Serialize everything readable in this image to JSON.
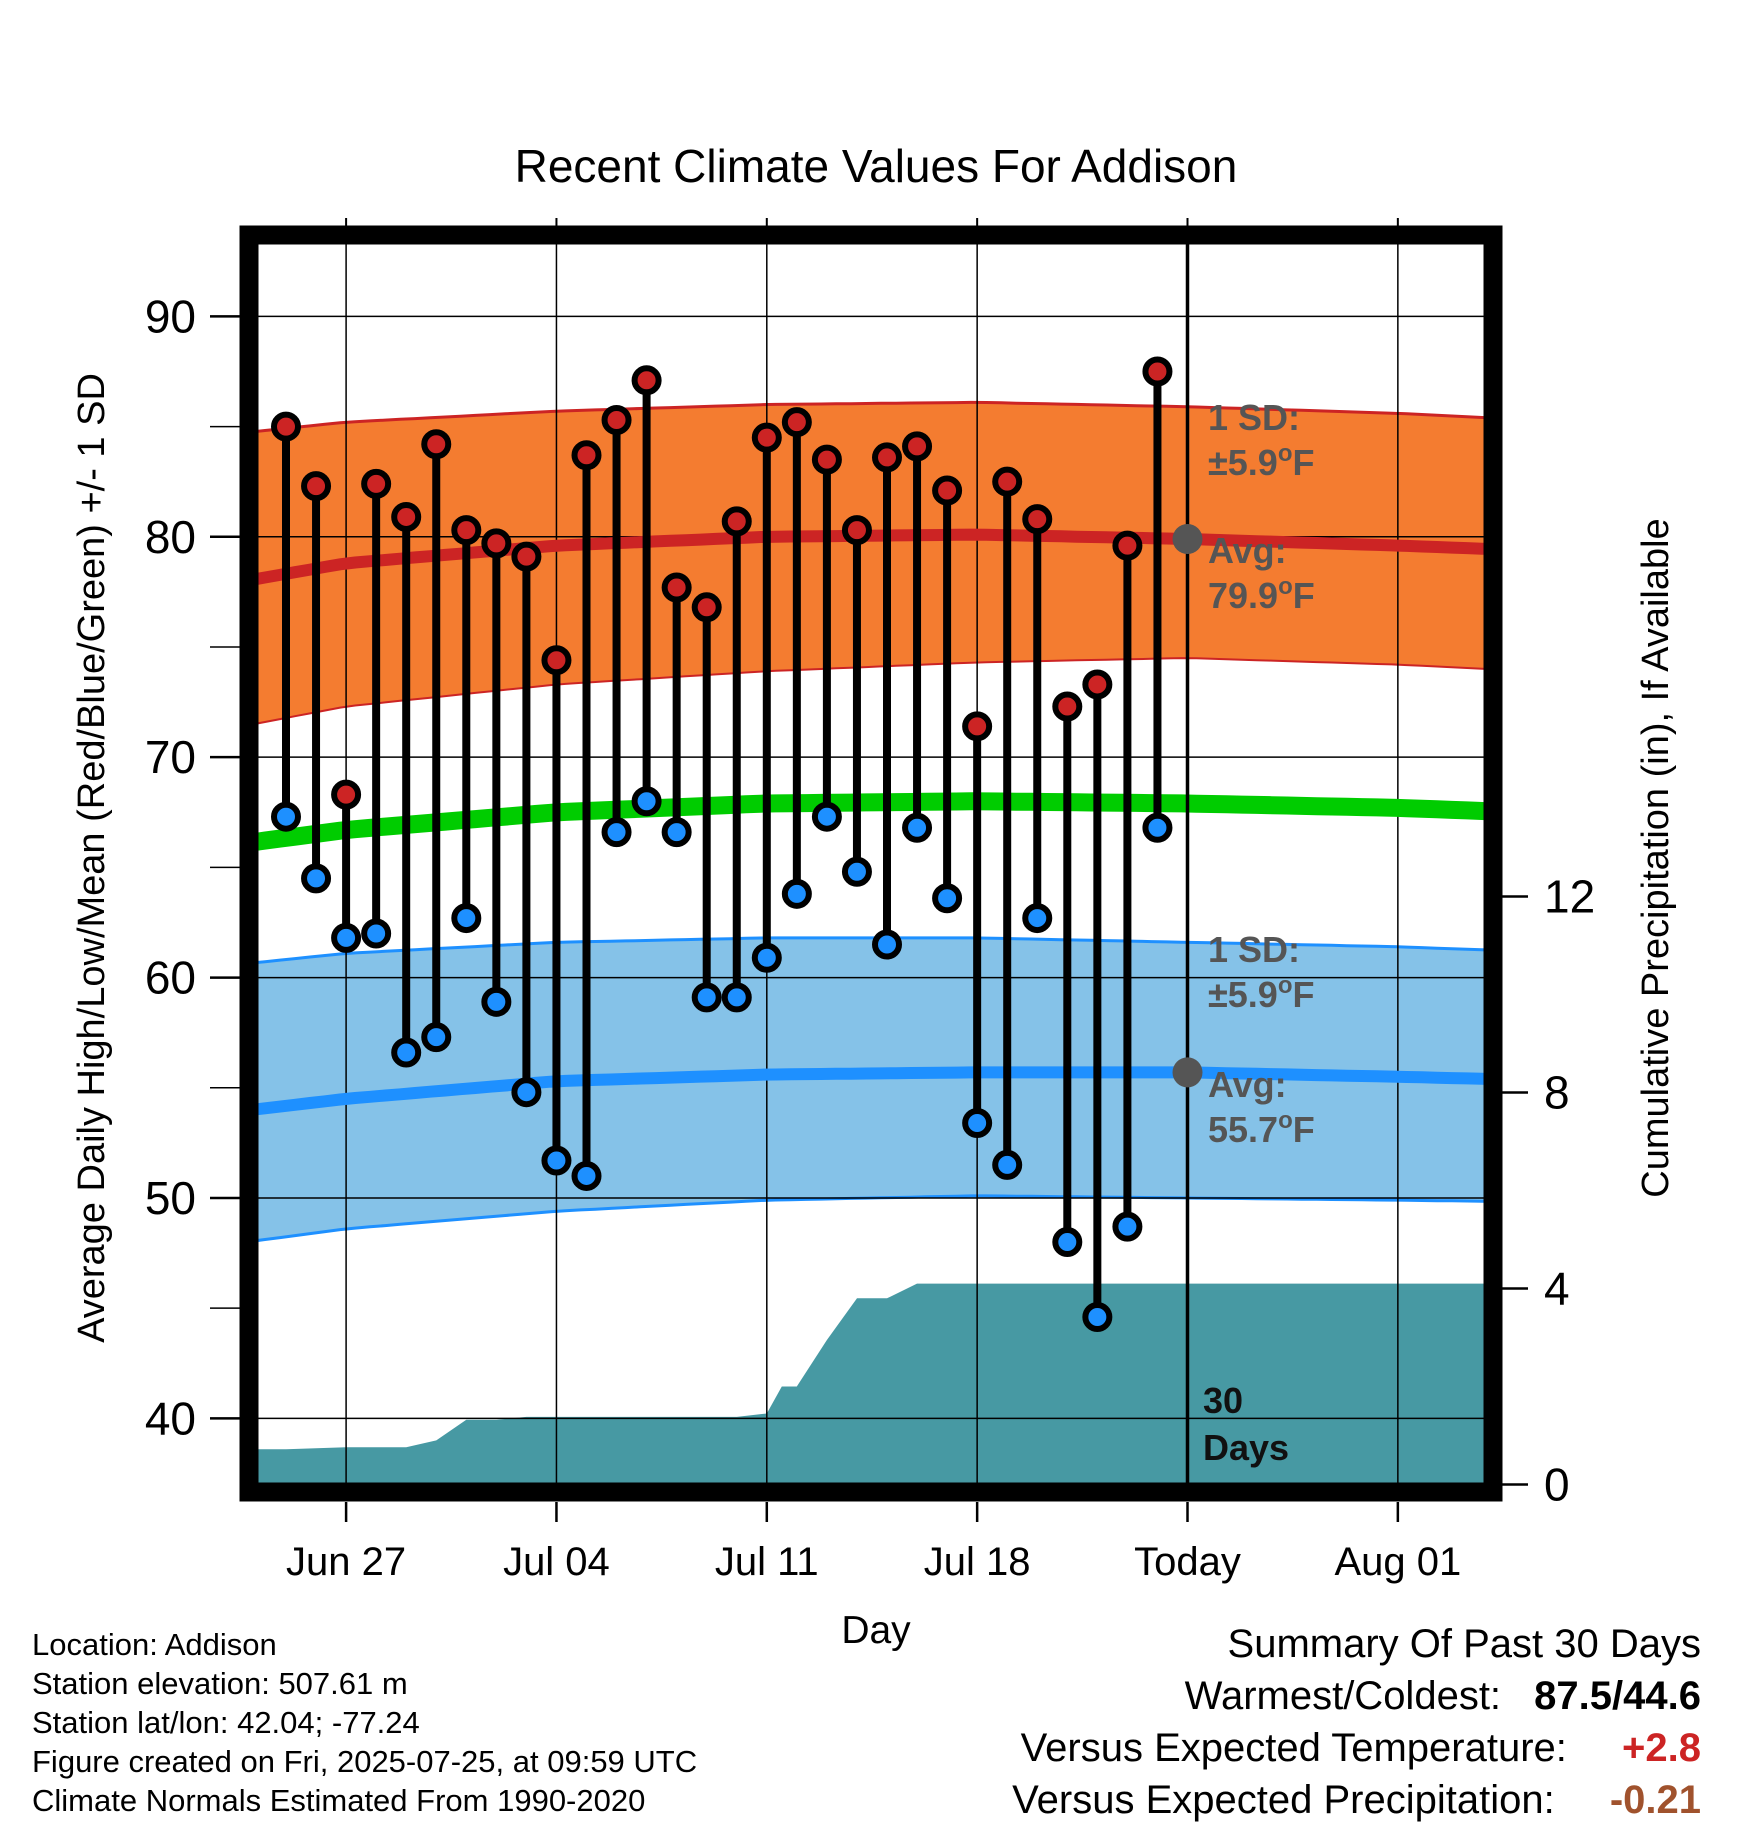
{
  "chart_data": {
    "type": "line",
    "title": "Recent Climate Values For Addison",
    "xlabel": "Day",
    "ylabel_left": "Average Daily High/Low/Mean (Red/Blue/Green) +/- 1 SD",
    "ylabel_right": "Cumulative Precipitation (in), If Available",
    "ylim_left": [
      37,
      93
    ],
    "ylim_right": [
      0,
      24
    ],
    "xlim_days": [
      -33.7,
      13.3
    ],
    "left_ticks": [
      40,
      50,
      60,
      70,
      80,
      90
    ],
    "right_ticks": [
      0,
      4,
      8,
      12
    ],
    "x_ticks": [
      {
        "day": -28,
        "label": "Jun 27"
      },
      {
        "day": -21,
        "label": "Jul 04"
      },
      {
        "day": -14,
        "label": "Jul 11"
      },
      {
        "day": -7,
        "label": "Jul 18"
      },
      {
        "day": 0,
        "label": "Today"
      },
      {
        "day": 7,
        "label": "Aug 01"
      }
    ],
    "daily": {
      "day": [
        -30,
        -29,
        -28,
        -27,
        -26,
        -25,
        -24,
        -23,
        -22,
        -21,
        -20,
        -19,
        -18,
        -17,
        -16,
        -15,
        -14,
        -13,
        -12,
        -11,
        -10,
        -9,
        -8,
        -7,
        -6,
        -5,
        -4,
        -3,
        -2,
        -1
      ],
      "high": [
        85.0,
        82.3,
        68.3,
        82.4,
        80.9,
        84.2,
        80.3,
        79.7,
        79.1,
        74.4,
        83.7,
        85.3,
        87.1,
        77.7,
        76.8,
        80.7,
        84.5,
        85.2,
        83.5,
        80.3,
        83.6,
        84.1,
        82.1,
        71.4,
        82.5,
        80.8,
        72.3,
        73.3,
        79.6,
        87.5
      ],
      "low": [
        67.3,
        64.5,
        61.8,
        62.0,
        56.6,
        57.3,
        62.7,
        58.9,
        54.8,
        51.7,
        51.0,
        66.6,
        68.0,
        66.6,
        59.1,
        59.1,
        60.9,
        63.8,
        67.3,
        64.8,
        61.5,
        66.8,
        63.6,
        53.4,
        51.5,
        62.7,
        48.0,
        44.6,
        48.7,
        66.8
      ]
    },
    "normals": {
      "day": [
        -33,
        -28,
        -21,
        -14,
        -7,
        0,
        7,
        13
      ],
      "avg_high": [
        77.6,
        78.8,
        79.6,
        80.0,
        80.1,
        79.9,
        79.6,
        79.3
      ],
      "high_sd_upper": [
        84.5,
        85.2,
        85.7,
        86.0,
        86.1,
        85.9,
        85.6,
        85.2
      ],
      "high_sd_lower": [
        71.0,
        72.3,
        73.3,
        73.9,
        74.3,
        74.5,
        74.2,
        73.8
      ],
      "avg_mean": [
        65.8,
        66.7,
        67.5,
        67.9,
        68.0,
        67.9,
        67.7,
        67.4
      ],
      "avg_low": [
        53.7,
        54.5,
        55.3,
        55.6,
        55.7,
        55.7,
        55.5,
        55.3
      ],
      "low_sd_upper": [
        60.4,
        61.1,
        61.6,
        61.8,
        61.8,
        61.6,
        61.4,
        61.1
      ],
      "low_sd_lower": [
        47.7,
        48.6,
        49.4,
        49.9,
        50.1,
        50.0,
        49.9,
        49.8
      ]
    },
    "precip_cumulative": {
      "day": [
        -33.5,
        -32.8,
        -30,
        -29,
        -28,
        -27,
        -26,
        -25,
        -24,
        -23,
        -22,
        -21,
        -20,
        -19,
        -18,
        -17,
        -16,
        -15,
        -14,
        -13.5,
        -13,
        -12,
        -11,
        -10,
        -9,
        -8,
        -7,
        -6,
        -5,
        -4,
        -3,
        -2,
        -1,
        0,
        13.3
      ],
      "value": [
        0.0,
        0.72,
        0.72,
        0.74,
        0.76,
        0.76,
        0.76,
        0.9,
        1.32,
        1.32,
        1.38,
        1.38,
        1.38,
        1.38,
        1.38,
        1.38,
        1.38,
        1.38,
        1.45,
        2.0,
        2.0,
        2.95,
        3.8,
        3.8,
        4.1,
        4.1,
        4.1,
        4.1,
        4.1,
        4.1,
        4.1,
        4.1,
        4.1,
        4.1,
        4.1
      ]
    },
    "annotations": {
      "high_sd_label": "1 SD:",
      "high_sd_value": "±5.9",
      "high_avg_label": "Avg:",
      "high_avg_value": "79.9",
      "low_sd_label": "1 SD:",
      "low_sd_value": "±5.9",
      "low_avg_label": "Avg:",
      "low_avg_value": "55.7",
      "degree_unit": "o",
      "f_unit": "F",
      "days_number": "30",
      "days_word": "Days",
      "today_avg_high": 79.9,
      "today_avg_low": 55.7
    },
    "colors": {
      "high_band": "#f47c30",
      "high_line": "#cc2424",
      "mean_line": "#00cc00",
      "low_band": "#85c2e8",
      "low_line": "#1e90ff",
      "precip": "#4799a3",
      "high_dot": "#cc2424",
      "low_dot": "#1e90ff",
      "annotation": "#555555"
    }
  },
  "info": {
    "location": "Location: Addison",
    "elevation": "Station elevation: 507.61 m",
    "latlon": "Station lat/lon: 42.04; -77.24",
    "created": "Figure created on Fri, 2025-07-25, at 09:59 UTC",
    "normals": "Climate Normals Estimated From 1990-2020"
  },
  "summary": {
    "title": "Summary Of Past 30 Days",
    "warm_cold_label": "Warmest/Coldest:",
    "warm_cold_value": "87.5/44.6",
    "temp_label": "Versus Expected Temperature:",
    "temp_value": "+2.8",
    "temp_color": "#cc2424",
    "precip_label": "Versus Expected Precipitation:",
    "precip_value": "-0.21",
    "precip_color": "#a0522d"
  }
}
